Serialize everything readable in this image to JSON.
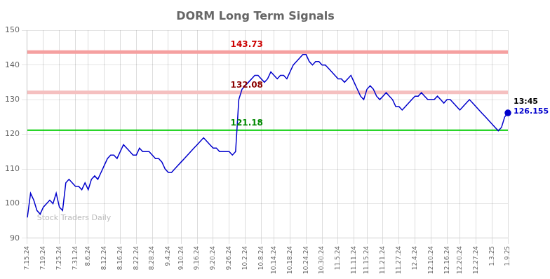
{
  "chart_data": {
    "type": "line",
    "title": "DORM Long Term Signals",
    "categories": [
      "7.15.24",
      null,
      null,
      null,
      null,
      "7.19.24",
      null,
      null,
      null,
      null,
      "7.25.24",
      null,
      null,
      null,
      null,
      "7.31.24",
      null,
      null,
      null,
      "8.6.24",
      null,
      null,
      null,
      null,
      "8.12.24",
      null,
      null,
      null,
      null,
      "8.16.24",
      null,
      null,
      null,
      null,
      "8.22.24",
      null,
      null,
      null,
      null,
      "8.28.24",
      null,
      null,
      null,
      null,
      "9.4.24",
      null,
      null,
      null,
      "9.10.24",
      null,
      null,
      null,
      null,
      "9.16.24",
      null,
      null,
      null,
      null,
      "9.20.24",
      null,
      null,
      null,
      null,
      "9.26.24",
      null,
      null,
      null,
      null,
      "10.2.24",
      null,
      null,
      null,
      null,
      "10.8.24",
      null,
      null,
      null,
      "10.14.24",
      null,
      null,
      null,
      null,
      "10.18.24",
      null,
      null,
      null,
      null,
      "10.24.24",
      null,
      null,
      null,
      null,
      "10.30.24",
      null,
      null,
      null,
      null,
      "11.5.24",
      null,
      null,
      null,
      null,
      "11.11.24",
      null,
      null,
      null,
      "11.15.24",
      null,
      null,
      null,
      null,
      "11.21.24",
      null,
      null,
      null,
      null,
      "11.27.24",
      null,
      null,
      null,
      null,
      "12.4.24",
      null,
      null,
      null,
      null,
      "12.10.24",
      null,
      null,
      null,
      null,
      "12.16.24",
      null,
      null,
      null,
      "12.20.24",
      null,
      null,
      null,
      null,
      "12.27.24",
      null,
      null,
      null,
      null,
      "1.3.25",
      null,
      null,
      null,
      null,
      "1.9.25"
    ],
    "values": [
      96,
      103,
      101,
      98,
      97,
      99,
      100,
      101,
      100,
      103,
      99,
      98,
      106,
      107,
      106,
      105,
      105,
      104,
      106,
      104,
      107,
      108,
      107,
      109,
      111,
      113,
      114,
      114,
      113,
      115,
      117,
      116,
      115,
      114,
      114,
      116,
      115,
      115,
      115,
      114,
      113,
      113,
      112,
      110,
      109,
      109,
      110,
      111,
      112,
      113,
      114,
      115,
      116,
      117,
      118,
      119,
      118,
      117,
      116,
      116,
      115,
      115,
      115,
      115,
      114,
      115,
      130,
      133,
      134,
      135,
      136,
      137,
      137,
      136,
      135,
      136,
      138,
      137,
      136,
      137,
      137,
      136,
      138,
      140,
      141,
      142,
      143,
      143,
      141,
      140,
      141,
      141,
      140,
      140,
      139,
      138,
      137,
      136,
      136,
      135,
      136,
      137,
      135,
      133,
      131,
      130,
      133,
      134,
      133,
      131,
      130,
      131,
      132,
      131,
      130,
      128,
      128,
      127,
      128,
      129,
      130,
      131,
      131,
      132,
      131,
      130,
      130,
      130,
      131,
      130,
      129,
      130,
      130,
      129,
      128,
      127,
      128,
      129,
      130,
      129,
      128,
      127,
      126,
      125,
      124,
      123,
      122,
      121,
      122,
      125,
      126.155
    ],
    "color": "#0000cc",
    "ylim": [
      90,
      150
    ],
    "yticks": [
      90,
      100,
      110,
      120,
      130,
      140,
      150
    ],
    "grid": true,
    "hlines": [
      {
        "value": 143.73,
        "color": "#f5a0a0",
        "label_color": "#cc0000"
      },
      {
        "value": 132.08,
        "color": "#f5c0c0",
        "label_color": "#8b0000"
      },
      {
        "value": 121.18,
        "color": "#00cc00",
        "label_color": "#008800"
      }
    ],
    "last_point": {
      "label": "13:45",
      "color": "#0000cc"
    },
    "watermark": "Stock Traders Daily"
  }
}
